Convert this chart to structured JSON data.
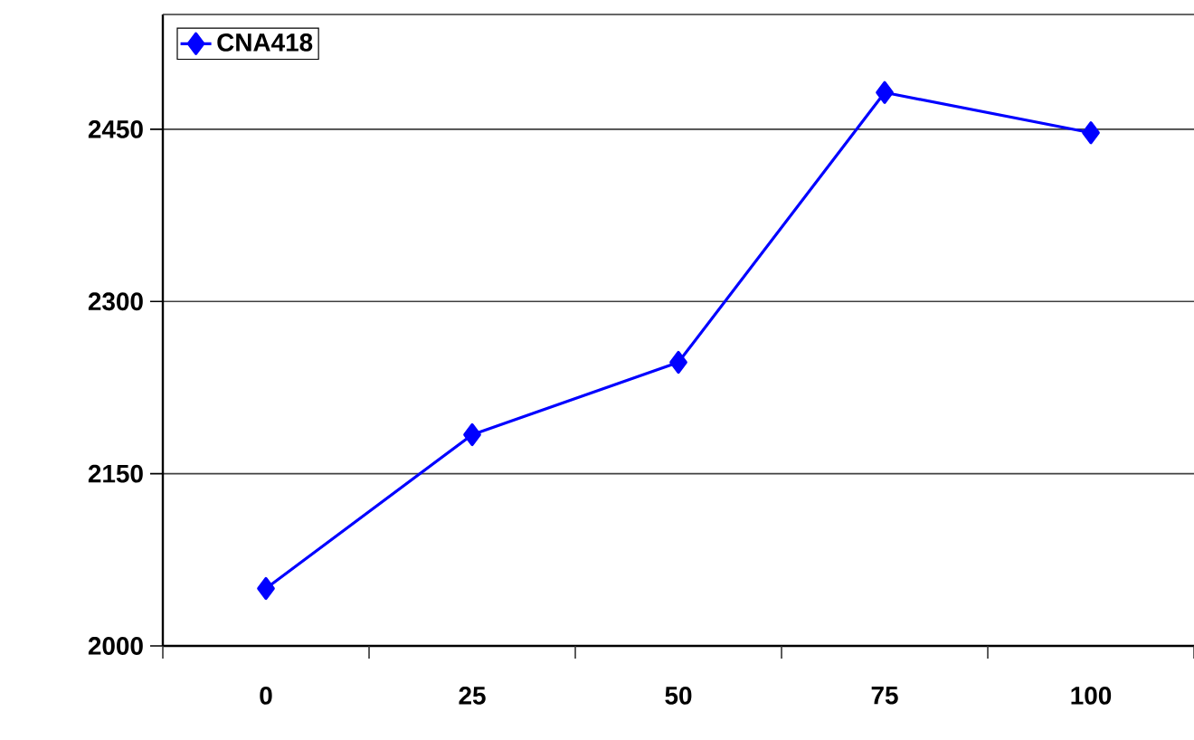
{
  "chart_data": {
    "type": "line",
    "categories": [
      "0",
      "25",
      "50",
      "75",
      "100"
    ],
    "series": [
      {
        "name": "CNA418",
        "color": "#0000ff",
        "values": [
          2050,
          2184,
          2247,
          2482,
          2447
        ]
      }
    ],
    "ylim": [
      2000,
      2550
    ],
    "yticks": [
      2000,
      2150,
      2300,
      2450
    ],
    "grid": "y",
    "legend": "top left",
    "marker": "diamond",
    "line_style": "solid"
  }
}
